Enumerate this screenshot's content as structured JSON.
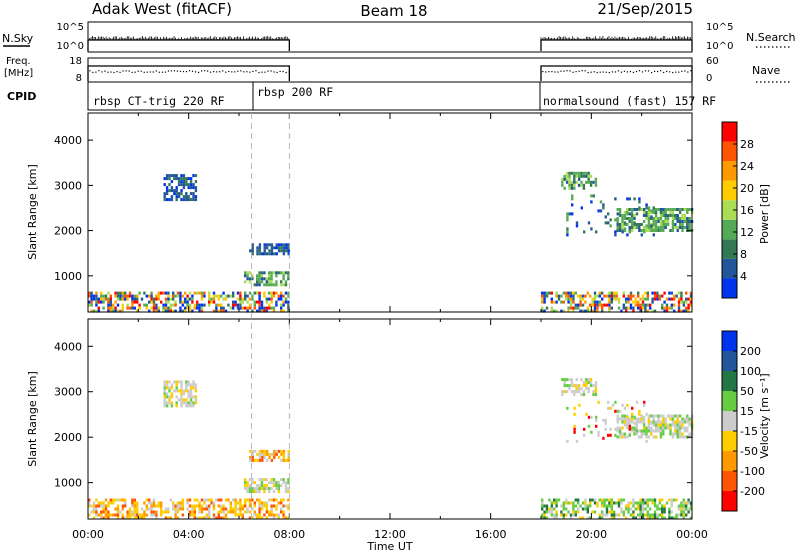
{
  "header": {
    "station": "Adak West (fitACF)",
    "beam": "Beam 18",
    "date": "21/Sep/2015"
  },
  "nsky_panel": {
    "label_left": "N.Sky",
    "label_right": "N.Search",
    "left_ticks": [
      "10^5",
      "10^0"
    ],
    "right_ticks": [
      "10^5",
      "10^0"
    ]
  },
  "freq_panel": {
    "label_left_line1": "Freq.",
    "label_left_line2": "[MHz]",
    "label_right": "Nave",
    "left_ticks": [
      "18",
      "8"
    ],
    "right_ticks": [
      "60",
      "0"
    ]
  },
  "cpid_panel": {
    "label": "CPID",
    "segments": [
      {
        "label": "rbsp CT-trig 220 RF"
      },
      {
        "label": "rbsp 200 RF"
      },
      {
        "label": "normalsound (fast) 157 RF"
      }
    ]
  },
  "colors": {
    "power": [
      "#0033ee",
      "#225599",
      "#337755",
      "#55aa55",
      "#aadd55",
      "#ffcc00",
      "#ff9900",
      "#ff5500",
      "#ff0000"
    ],
    "velocity": [
      "#ff0000",
      "#ff5500",
      "#ff9900",
      "#ffcc00",
      "#cccccc",
      "#66cc44",
      "#227744",
      "#225599",
      "#0033ee"
    ]
  },
  "chart_data": [
    {
      "type": "heatmap",
      "name": "power",
      "ylabel": "Slant Range [km]",
      "yticks": [
        "4000",
        "3000",
        "2000",
        "1000"
      ],
      "ylim": [
        200,
        4600
      ],
      "xlim": [
        0,
        24
      ],
      "colorbar_label": "Power [dB]",
      "colorbar_ticks": [
        "28",
        "24",
        "20",
        "16",
        "12",
        "8",
        "4"
      ],
      "regions": [
        {
          "t0": 0.0,
          "t1": 8.0,
          "r0": 250,
          "r1": 650,
          "mix": "all"
        },
        {
          "t0": 6.2,
          "t1": 8.0,
          "r0": 780,
          "r1": 1100,
          "mix": "mid"
        },
        {
          "t0": 6.4,
          "t1": 8.0,
          "r0": 1480,
          "r1": 1720,
          "mix": "low"
        },
        {
          "t0": 3.0,
          "t1": 4.3,
          "r0": 2700,
          "r1": 3250,
          "mix": "low"
        },
        {
          "t0": 18.0,
          "t1": 24.0,
          "r0": 250,
          "r1": 650,
          "mix": "all"
        },
        {
          "t0": 18.8,
          "t1": 20.2,
          "r0": 2950,
          "r1": 3300,
          "mix": "mid"
        },
        {
          "t0": 21.0,
          "t1": 24.0,
          "r0": 2000,
          "r1": 2500,
          "mix": "mid"
        },
        {
          "t0": 19.0,
          "t1": 22.5,
          "r0": 1900,
          "r1": 2800,
          "mix": "sparse"
        }
      ]
    },
    {
      "type": "heatmap",
      "name": "velocity",
      "ylabel": "Slant Range [km]",
      "yticks": [
        "4000",
        "3000",
        "2000",
        "1000"
      ],
      "ylim": [
        200,
        4600
      ],
      "xlim": [
        0,
        24
      ],
      "xlabel": "Time UT",
      "xticks": [
        "00:00",
        "04:00",
        "08:00",
        "12:00",
        "16:00",
        "20:00",
        "00:00"
      ],
      "colorbar_label": "Velocity [m s⁻¹]",
      "colorbar_ticks": [
        "200",
        "100",
        "50",
        "15",
        "-15",
        "-50",
        "-100",
        "-200"
      ],
      "regions": [
        {
          "t0": 0.0,
          "t1": 8.0,
          "r0": 250,
          "r1": 650,
          "mix": "orange"
        },
        {
          "t0": 6.2,
          "t1": 8.0,
          "r0": 780,
          "r1": 1100,
          "mix": "gray"
        },
        {
          "t0": 6.4,
          "t1": 8.0,
          "r0": 1480,
          "r1": 1720,
          "mix": "orange"
        },
        {
          "t0": 3.0,
          "t1": 4.3,
          "r0": 2700,
          "r1": 3250,
          "mix": "gray"
        },
        {
          "t0": 18.0,
          "t1": 24.0,
          "r0": 250,
          "r1": 650,
          "mix": "green"
        },
        {
          "t0": 18.8,
          "t1": 20.2,
          "r0": 2950,
          "r1": 3300,
          "mix": "gray"
        },
        {
          "t0": 21.0,
          "t1": 24.0,
          "r0": 2000,
          "r1": 2500,
          "mix": "gray"
        },
        {
          "t0": 19.0,
          "t1": 22.5,
          "r0": 1900,
          "r1": 2800,
          "mix": "sparse"
        }
      ]
    }
  ]
}
